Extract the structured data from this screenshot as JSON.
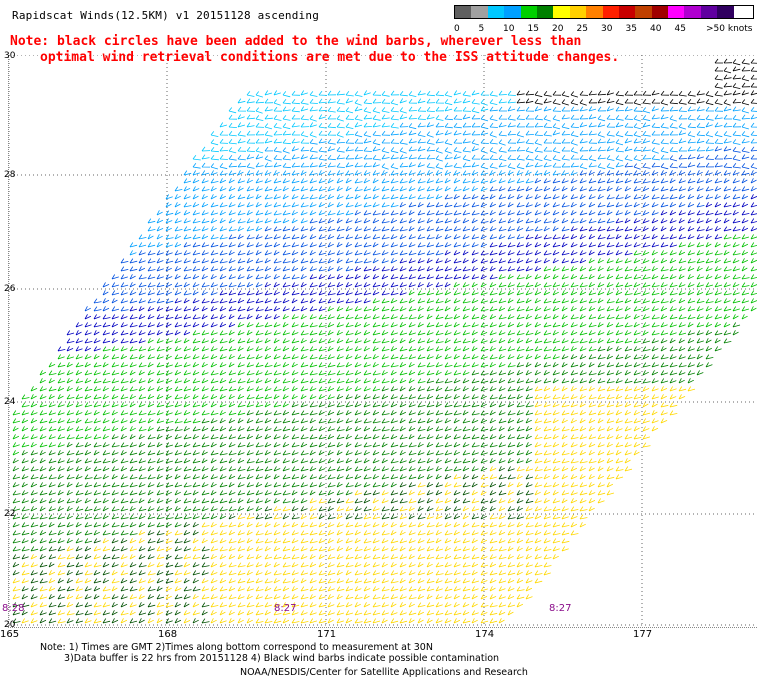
{
  "title": "Rapidscat Winds(12.5KM) v1 20151128 ascending",
  "note_line1": "Note: black circles have been added to the wind barbs, wherever less than",
  "note_line2": "optimal wind retrieval conditions are met due to the ISS attitude changes.",
  "legend": {
    "unit": ">50 knots",
    "labels": [
      "0",
      "5",
      "10",
      "15",
      "20",
      "25",
      "30",
      "35",
      "40",
      "45"
    ],
    "colors": [
      "#606060",
      "#a0a0a0",
      "#00c8ff",
      "#00a0ff",
      "#00d000",
      "#008000",
      "#ffff00",
      "#ffd000",
      "#ff8000",
      "#ff2000",
      "#c80000",
      "#c04000",
      "#a00000",
      "#ff00ff",
      "#b000d0",
      "#6000a0",
      "#300060"
    ]
  },
  "lat_labels": [
    "30",
    "28",
    "26",
    "24",
    "22",
    "20"
  ],
  "lon_labels": [
    "165",
    "168",
    "171",
    "174",
    "177"
  ],
  "time_labels": [
    "8:28",
    "8:27",
    "8:27"
  ],
  "footnote1": "Note: 1) Times are GMT 2)Times along bottom correspond to measurement at 30N",
  "footnote2": "3)Data buffer is 22 hrs from 20151128 4) Black wind barbs indicate possible contamination",
  "credit": "NOAA/NESDIS/Center for Satellite Applications and Research"
}
